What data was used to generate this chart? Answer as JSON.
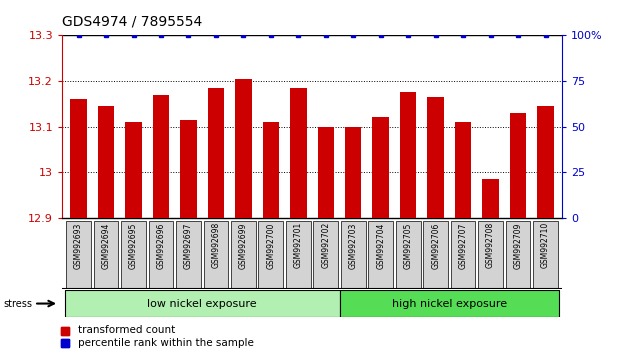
{
  "title": "GDS4974 / 7895554",
  "categories": [
    "GSM992693",
    "GSM992694",
    "GSM992695",
    "GSM992696",
    "GSM992697",
    "GSM992698",
    "GSM992699",
    "GSM992700",
    "GSM992701",
    "GSM992702",
    "GSM992703",
    "GSM992704",
    "GSM992705",
    "GSM992706",
    "GSM992707",
    "GSM992708",
    "GSM992709",
    "GSM992710"
  ],
  "bar_values": [
    13.16,
    13.145,
    13.11,
    13.17,
    13.115,
    13.185,
    13.205,
    13.11,
    13.185,
    13.1,
    13.1,
    13.12,
    13.175,
    13.165,
    13.11,
    12.985,
    13.13,
    13.145
  ],
  "percentile_values": [
    100,
    100,
    100,
    100,
    100,
    100,
    100,
    100,
    100,
    100,
    100,
    100,
    100,
    100,
    100,
    100,
    100,
    100
  ],
  "ylim_left": [
    12.9,
    13.3
  ],
  "ylim_right": [
    0,
    100
  ],
  "yticks_left": [
    12.9,
    13.0,
    13.1,
    13.2,
    13.3
  ],
  "ytick_labels_left": [
    "12.9",
    "13",
    "13.1",
    "13.2",
    "13.3"
  ],
  "yticks_right": [
    0,
    25,
    50,
    75,
    100
  ],
  "ytick_labels_right": [
    "0",
    "25",
    "50",
    "75",
    "100%"
  ],
  "bar_color": "#cc0000",
  "percentile_color": "#0000cc",
  "grid_color": "#000000",
  "axis_color_left": "#cc0000",
  "axis_color_right": "#0000cc",
  "low_nickel_label": "low nickel exposure",
  "high_nickel_label": "high nickel exposure",
  "low_nickel_color": "#b2f0b2",
  "high_nickel_color": "#55dd55",
  "stress_label": "stress",
  "low_nickel_range": [
    0,
    9
  ],
  "high_nickel_range": [
    10,
    17
  ],
  "legend_bar_label": "transformed count",
  "legend_percentile_label": "percentile rank within the sample",
  "background_color": "#ffffff",
  "tick_label_bgcolor": "#d3d3d3"
}
